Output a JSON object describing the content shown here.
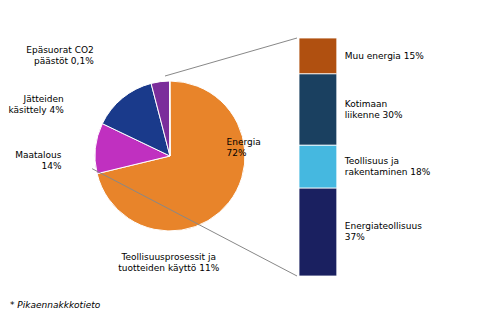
{
  "chart_data": [
    {
      "type": "pie",
      "values": [
        72,
        11,
        14,
        4,
        0.1
      ],
      "value_labels": [
        "Energia\n72%",
        "Teollisuusprosessit ja\ntuotteiden käyttö  11%",
        "Maatalous\n14%",
        "Jätteiden\nkäsittely 4%",
        "Epäsuorat CO2\npäästöt 0,1%"
      ],
      "colors": [
        "#E8842A",
        "#C030C0",
        "#1A3A8B",
        "#7B2D9B",
        "#E8842A"
      ],
      "annotations": [
        "* Pikaennakkkotieto"
      ]
    },
    {
      "type": "bar",
      "stacked": true,
      "values": [
        37,
        18,
        30,
        15
      ],
      "value_labels": [
        "Energiateollisuus\n37%",
        "Teollisuus ja\nrakentaminen 18%",
        "Kotimaan\nliikenne 30%",
        "Muu energia 15%"
      ],
      "colors": [
        "#1A2060",
        "#45B8E0",
        "#1A4060",
        "#B05010"
      ],
      "ylim": [
        0,
        100
      ],
      "tick_labels": false
    }
  ]
}
